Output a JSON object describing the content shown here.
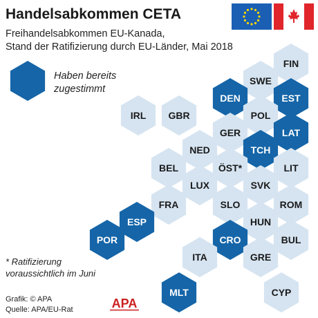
{
  "header": {
    "title": "Handelsabkommen CETA",
    "subtitle_line1": "Freihandelsabkommen EU-Kanada,",
    "subtitle_line2": "Stand der Ratifizierung durch EU-Länder, Mai 2018"
  },
  "legend": {
    "line1": "Haben bereits",
    "line2": "zugestimmt"
  },
  "footnote": {
    "line1": "* Ratifizierung",
    "line2": "voraussichtlich im Juni"
  },
  "credits": {
    "line1": "Grafik: © APA",
    "line2": "Quelle: APA/EU-Rat"
  },
  "logo": {
    "text": "APA",
    "color": "#cc1f1f"
  },
  "colors": {
    "approved": "#1565a8",
    "pending": "#d6e4f1",
    "approved_text": "#ffffff",
    "pending_text": "#1a1a1a"
  },
  "countries": [
    {
      "code": "FIN",
      "approved": false
    },
    {
      "code": "SWE",
      "approved": false
    },
    {
      "code": "DEN",
      "approved": true
    },
    {
      "code": "EST",
      "approved": true
    },
    {
      "code": "IRL",
      "approved": false
    },
    {
      "code": "GBR",
      "approved": false
    },
    {
      "code": "POL",
      "approved": false
    },
    {
      "code": "GER",
      "approved": false
    },
    {
      "code": "LAT",
      "approved": true
    },
    {
      "code": "NED",
      "approved": false
    },
    {
      "code": "TCH",
      "approved": true
    },
    {
      "code": "BEL",
      "approved": false
    },
    {
      "code": "ÖST*",
      "approved": false
    },
    {
      "code": "LIT",
      "approved": false
    },
    {
      "code": "LUX",
      "approved": false
    },
    {
      "code": "SVK",
      "approved": false
    },
    {
      "code": "FRA",
      "approved": false
    },
    {
      "code": "SLO",
      "approved": false
    },
    {
      "code": "ROM",
      "approved": false
    },
    {
      "code": "ESP",
      "approved": true
    },
    {
      "code": "HUN",
      "approved": false
    },
    {
      "code": "POR",
      "approved": true
    },
    {
      "code": "CRO",
      "approved": true
    },
    {
      "code": "BUL",
      "approved": false
    },
    {
      "code": "ITA",
      "approved": false
    },
    {
      "code": "GRE",
      "approved": false
    },
    {
      "code": "MLT",
      "approved": true
    },
    {
      "code": "CYP",
      "approved": false
    }
  ]
}
